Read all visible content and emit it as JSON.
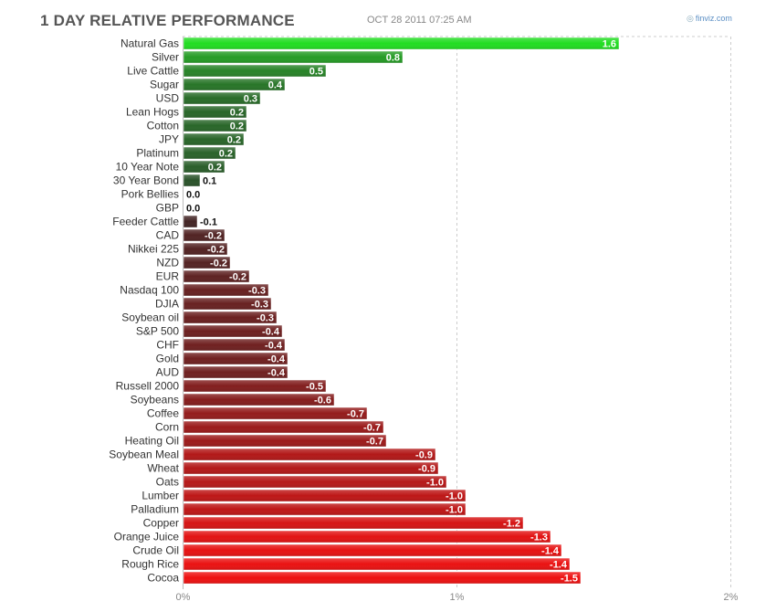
{
  "header": {
    "title": "1 DAY RELATIVE PERFORMANCE",
    "timestamp": "OCT 28 2011 07:25 AM",
    "brand": "finviz.com"
  },
  "colors": {
    "positive_high": "#22dd22",
    "positive_low": "#2b4a2b",
    "negative_low": "#3a2626",
    "negative_high": "#ee1111",
    "grid": "#cccccc",
    "axis_text": "#888888",
    "brand": "#5a8ec4"
  },
  "chart_data": {
    "type": "bar",
    "orientation": "horizontal",
    "title": "1 DAY RELATIVE PERFORMANCE",
    "xlabel": "",
    "ylabel": "",
    "xlim": [
      0,
      2
    ],
    "x_ticks": [
      0,
      1,
      2
    ],
    "x_tick_labels": [
      "0%",
      "1%",
      "2%"
    ],
    "grid": true,
    "categories": [
      "Natural Gas",
      "Silver",
      "Live Cattle",
      "Sugar",
      "USD",
      "Lean Hogs",
      "Cotton",
      "JPY",
      "Platinum",
      "10 Year Note",
      "30 Year Bond",
      "Pork Bellies",
      "GBP",
      "Feeder Cattle",
      "CAD",
      "Nikkei 225",
      "NZD",
      "EUR",
      "Nasdaq 100",
      "DJIA",
      "Soybean oil",
      "S&P 500",
      "CHF",
      "Gold",
      "AUD",
      "Russell 2000",
      "Soybeans",
      "Coffee",
      "Corn",
      "Heating Oil",
      "Soybean Meal",
      "Wheat",
      "Oats",
      "Lumber",
      "Palladium",
      "Copper",
      "Orange Juice",
      "Crude Oil",
      "Rough Rice",
      "Cocoa"
    ],
    "values": [
      1.59,
      0.8,
      0.52,
      0.37,
      0.28,
      0.23,
      0.23,
      0.22,
      0.19,
      0.15,
      0.06,
      0.0,
      0.0,
      -0.05,
      -0.15,
      -0.16,
      -0.17,
      -0.24,
      -0.31,
      -0.32,
      -0.34,
      -0.36,
      -0.37,
      -0.38,
      -0.38,
      -0.52,
      -0.55,
      -0.67,
      -0.73,
      -0.74,
      -0.92,
      -0.93,
      -0.96,
      -1.03,
      -1.03,
      -1.24,
      -1.34,
      -1.38,
      -1.41,
      -1.45
    ],
    "value_labels": [
      "1.6",
      "0.8",
      "0.5",
      "0.4",
      "0.3",
      "0.2",
      "0.2",
      "0.2",
      "0.2",
      "0.2",
      "0.1",
      "0.0",
      "0.0",
      "-0.1",
      "-0.2",
      "-0.2",
      "-0.2",
      "-0.2",
      "-0.3",
      "-0.3",
      "-0.3",
      "-0.4",
      "-0.4",
      "-0.4",
      "-0.4",
      "-0.5",
      "-0.6",
      "-0.7",
      "-0.7",
      "-0.7",
      "-0.9",
      "-0.9",
      "-1.0",
      "-1.0",
      "-1.0",
      "-1.2",
      "-1.3",
      "-1.4",
      "-1.4",
      "-1.5"
    ]
  }
}
